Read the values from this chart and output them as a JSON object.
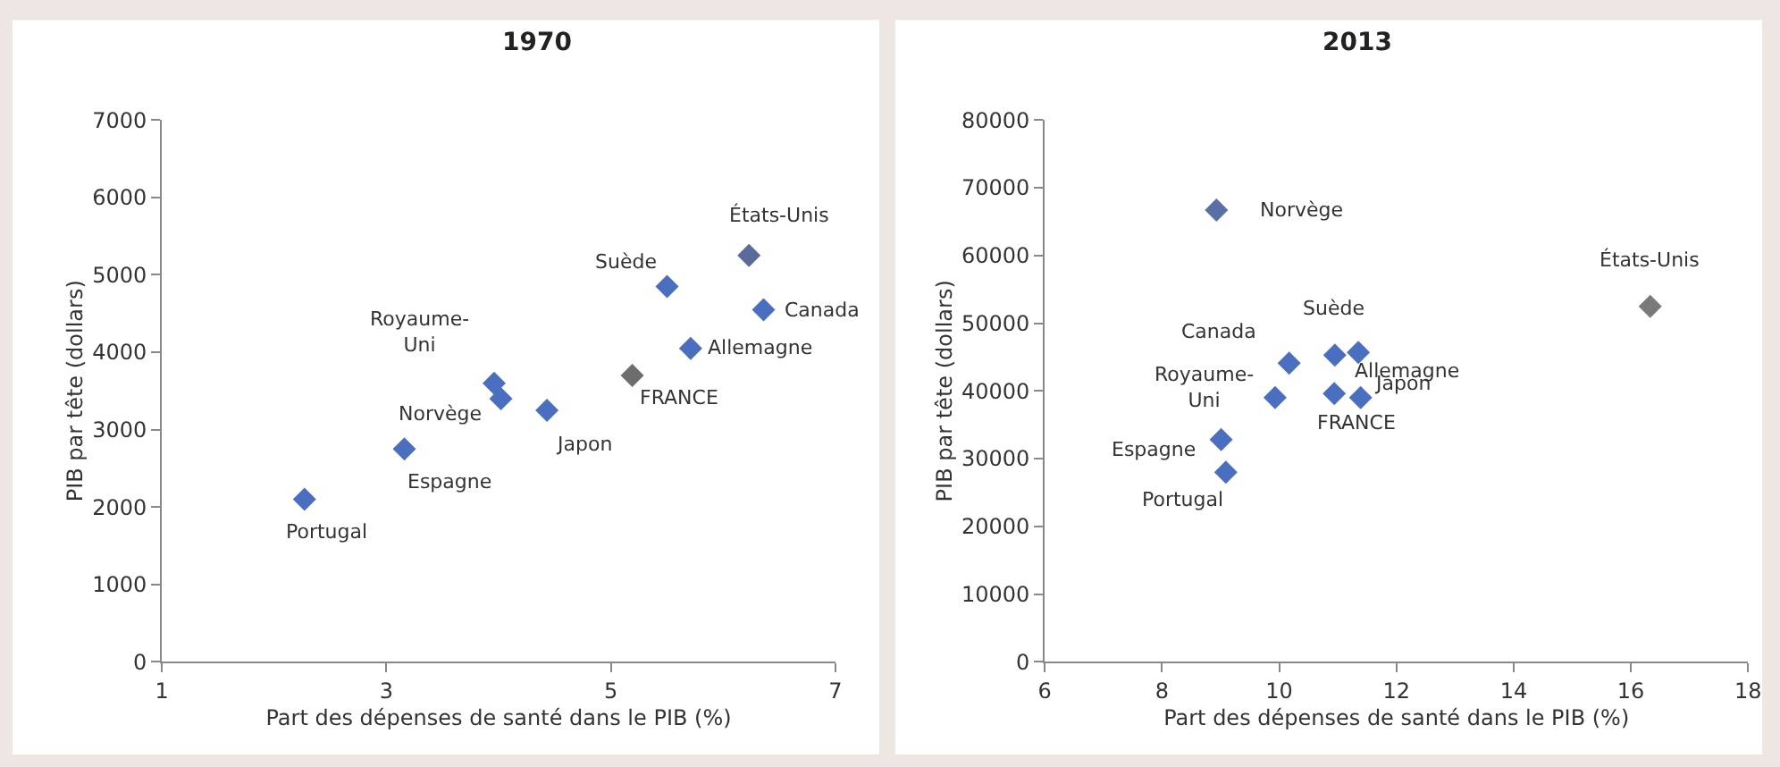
{
  "chart_data": [
    {
      "type": "scatter",
      "title": "1970",
      "xlabel": "Part des dépenses de santé dans le PIB (%)",
      "ylabel": "PIB par tête (dollars)",
      "marker": "diamond",
      "xlim": [
        1,
        7
      ],
      "xticks": [
        1,
        3,
        5,
        7
      ],
      "ylim": [
        0,
        7000
      ],
      "yticks": [
        0,
        1000,
        2000,
        3000,
        4000,
        5000,
        6000,
        7000
      ],
      "series": [
        {
          "x": [
            2.27,
            3.16,
            3.96,
            4.02,
            4.43,
            5.19,
            5.71,
            5.5,
            6.23,
            6.36
          ],
          "values": [
            2100,
            2750,
            3600,
            3400,
            3250,
            3700,
            4050,
            4850,
            5250,
            4550
          ],
          "colors": [
            "#4a6fc0",
            "#4a6fc0",
            "#4a6fc0",
            "#4a6fc0",
            "#4a6fc0",
            "#6d6d6d",
            "#4a6fc0",
            "#4a6fc0",
            "#5a6a9a",
            "#4a6fc0"
          ]
        }
      ],
      "annotations": [
        {
          "text": "Portugal",
          "x": 2.27,
          "y": 2100
        },
        {
          "text": "Espagne",
          "x": 3.16,
          "y": 2750
        },
        {
          "text": "Royaume-\nUni",
          "x": 3.96,
          "y": 3600
        },
        {
          "text": "Norvège",
          "x": 4.02,
          "y": 3400
        },
        {
          "text": "Japon",
          "x": 4.43,
          "y": 3250
        },
        {
          "text": "FRANCE",
          "x": 5.19,
          "y": 3700
        },
        {
          "text": "Allemagne",
          "x": 5.71,
          "y": 4050
        },
        {
          "text": "Suède",
          "x": 5.5,
          "y": 4850
        },
        {
          "text": "États-Unis",
          "x": 6.23,
          "y": 5250
        },
        {
          "text": "Canada",
          "x": 6.36,
          "y": 4550
        }
      ]
    },
    {
      "type": "scatter",
      "title": "2013",
      "xlabel": "Part des dépenses de santé dans le PIB (%)",
      "ylabel": "PIB par tête (dollars)",
      "marker": "diamond",
      "xlim": [
        6,
        18
      ],
      "xticks": [
        6,
        8,
        10,
        12,
        14,
        16,
        18
      ],
      "ylim": [
        0,
        80000
      ],
      "yticks": [
        0,
        10000,
        20000,
        30000,
        40000,
        50000,
        60000,
        70000,
        80000
      ],
      "series": [
        {
          "x": [
            8.93,
            16.33,
            10.95,
            11.35,
            10.17,
            9.93,
            10.94,
            11.39,
            9.01,
            9.09
          ],
          "values": [
            66700,
            52500,
            45300,
            45700,
            44100,
            39000,
            39600,
            39000,
            32800,
            28000
          ],
          "colors": [
            "#5a6fa8",
            "#7a7a7a",
            "#4a6fc0",
            "#4a6fc0",
            "#4a6fc0",
            "#4a6fc0",
            "#4a6fc0",
            "#4a6fc0",
            "#4a6fc0",
            "#4a6fc0"
          ]
        }
      ],
      "annotations": [
        {
          "text": "Norvège",
          "x": 8.93,
          "y": 66700
        },
        {
          "text": "États-Unis",
          "x": 16.33,
          "y": 52500
        },
        {
          "text": "Suède",
          "x": 10.95,
          "y": 45300
        },
        {
          "text": "Allemagne",
          "x": 11.35,
          "y": 45700
        },
        {
          "text": "Canada",
          "x": 10.17,
          "y": 44100
        },
        {
          "text": "Royaume-\nUni",
          "x": 9.93,
          "y": 39000
        },
        {
          "text": "FRANCE",
          "x": 10.94,
          "y": 39600
        },
        {
          "text": "Japon",
          "x": 11.39,
          "y": 39000
        },
        {
          "text": "Espagne",
          "x": 9.01,
          "y": 32800
        },
        {
          "text": "Portugal",
          "x": 9.09,
          "y": 28000
        }
      ]
    }
  ]
}
